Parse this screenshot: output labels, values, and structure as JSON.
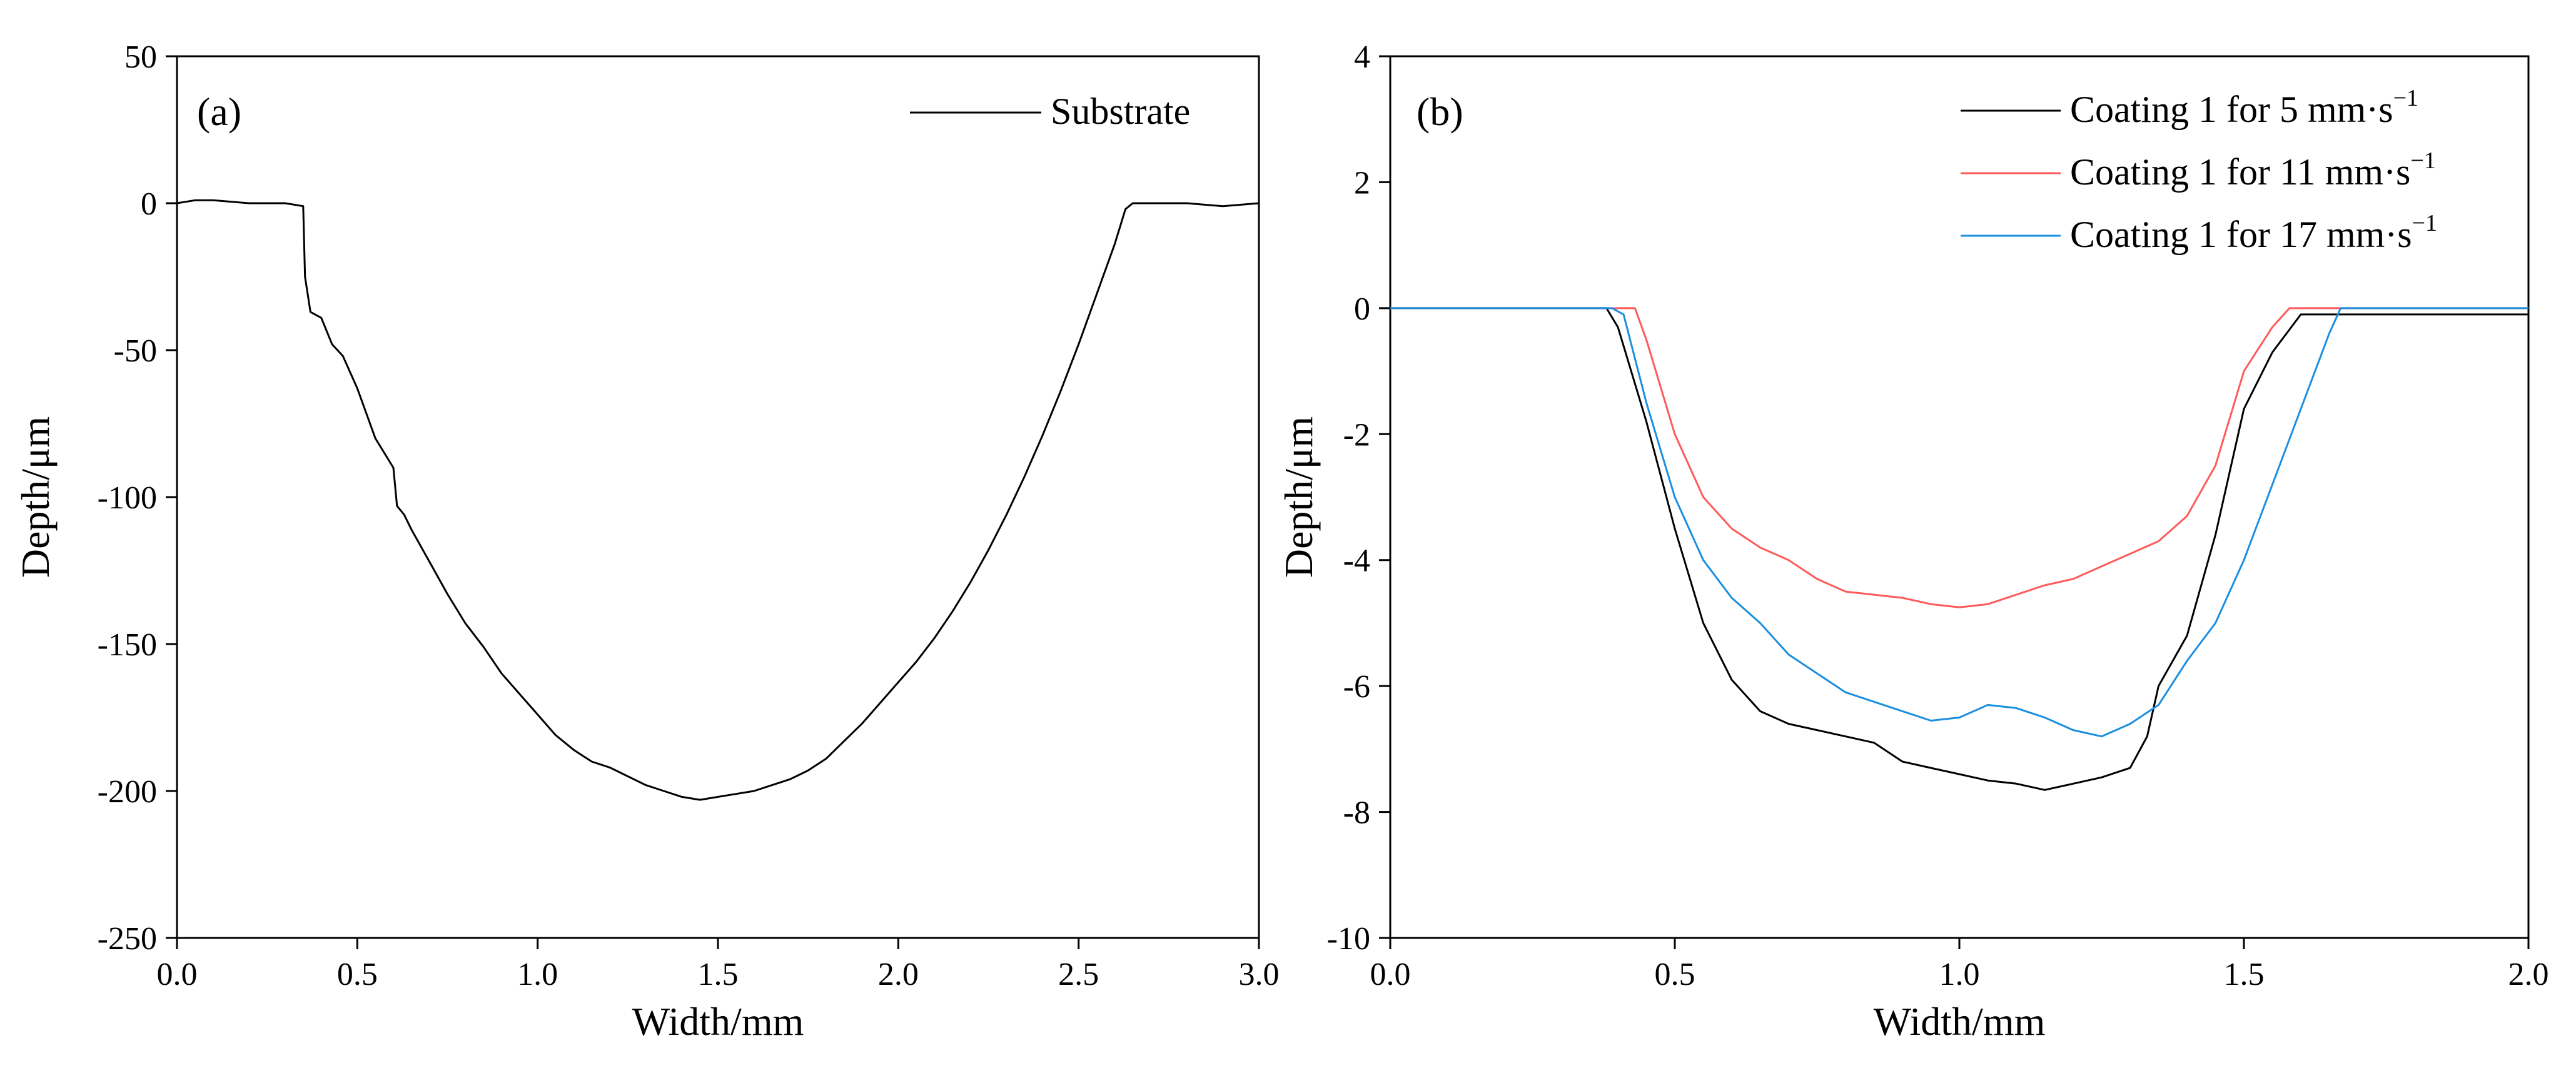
{
  "chart_data": [
    {
      "type": "line",
      "panel_label": "(a)",
      "xlabel": "Width/mm",
      "ylabel": "Depth/μm",
      "xlim": [
        0.0,
        3.0
      ],
      "ylim": [
        -250,
        50
      ],
      "xticks": [
        0.0,
        0.5,
        1.0,
        1.5,
        2.0,
        2.5,
        3.0
      ],
      "xtick_labels": [
        "0.0",
        "0.5",
        "1.0",
        "1.5",
        "2.0",
        "2.5",
        "3.0"
      ],
      "yticks": [
        50,
        0,
        -50,
        -100,
        -150,
        -200,
        -250
      ],
      "ytick_labels": [
        "50",
        "0",
        "-50",
        "-100",
        "-150",
        "-200",
        "-250"
      ],
      "legend_position": "top-right",
      "series": [
        {
          "name": "Substrate",
          "color": "#000000",
          "x": [
            0.0,
            0.05,
            0.1,
            0.2,
            0.3,
            0.35,
            0.355,
            0.37,
            0.4,
            0.43,
            0.46,
            0.5,
            0.55,
            0.6,
            0.61,
            0.63,
            0.65,
            0.7,
            0.75,
            0.8,
            0.85,
            0.9,
            0.95,
            1.0,
            1.05,
            1.1,
            1.15,
            1.2,
            1.25,
            1.3,
            1.35,
            1.4,
            1.45,
            1.5,
            1.55,
            1.6,
            1.65,
            1.7,
            1.75,
            1.8,
            1.85,
            1.9,
            1.95,
            2.0,
            2.05,
            2.1,
            2.15,
            2.2,
            2.25,
            2.3,
            2.35,
            2.4,
            2.45,
            2.5,
            2.55,
            2.6,
            2.63,
            2.65,
            2.7,
            2.8,
            2.9,
            3.0
          ],
          "y": [
            0,
            1,
            1,
            0,
            0,
            -1,
            -25,
            -37,
            -39,
            -48,
            -52,
            -63,
            -80,
            -90,
            -103,
            -106,
            -111,
            -122,
            -133,
            -143,
            -151,
            -160,
            -167,
            -174,
            -181,
            -186,
            -190,
            -192,
            -195,
            -198,
            -200,
            -202,
            -203,
            -202,
            -201,
            -200,
            -198,
            -196,
            -193,
            -189,
            -183,
            -177,
            -170,
            -163,
            -156,
            -148,
            -139,
            -129,
            -118,
            -106,
            -93,
            -79,
            -64,
            -48,
            -31,
            -14,
            -2,
            0,
            0,
            0,
            -1,
            0
          ]
        }
      ]
    },
    {
      "type": "line",
      "panel_label": "(b)",
      "xlabel": "Width/mm",
      "ylabel": "Depth/μm",
      "xlim": [
        0.0,
        2.0
      ],
      "ylim": [
        -10,
        4
      ],
      "xticks": [
        0.0,
        0.5,
        1.0,
        1.5,
        2.0
      ],
      "xtick_labels": [
        "0.0",
        "0.5",
        "1.0",
        "1.5",
        "2.0"
      ],
      "yticks": [
        4,
        2,
        0,
        -2,
        -4,
        -6,
        -8,
        -10
      ],
      "ytick_labels": [
        "4",
        "2",
        "0",
        "-2",
        "-4",
        "-6",
        "-8",
        "-10"
      ],
      "legend_position": "top-right",
      "legend_unit": "mm·s",
      "legend_superscript": "−1",
      "series": [
        {
          "name": "Coating 1 for 5 mm·s−1",
          "label_main": "Coating 1 for 5 mm·s",
          "label_sup": "−1",
          "color": "#000000",
          "x": [
            0.0,
            0.38,
            0.4,
            0.45,
            0.5,
            0.55,
            0.6,
            0.65,
            0.7,
            0.75,
            0.8,
            0.85,
            0.9,
            0.95,
            1.0,
            1.05,
            1.1,
            1.15,
            1.2,
            1.25,
            1.3,
            1.33,
            1.35,
            1.4,
            1.45,
            1.5,
            1.55,
            1.6,
            1.65,
            1.7,
            2.0
          ],
          "y": [
            0,
            0,
            -0.3,
            -1.8,
            -3.5,
            -5.0,
            -5.9,
            -6.4,
            -6.6,
            -6.7,
            -6.8,
            -6.9,
            -7.2,
            -7.3,
            -7.4,
            -7.5,
            -7.55,
            -7.65,
            -7.55,
            -7.45,
            -7.3,
            -6.8,
            -6.0,
            -5.2,
            -3.6,
            -1.6,
            -0.7,
            -0.1,
            -0.1,
            -0.1,
            -0.1
          ]
        },
        {
          "name": "Coating 1 for 11 mm·s−1",
          "label_main": "Coating 1 for 11 mm·s",
          "label_sup": "−1",
          "color": "#ff5a5a",
          "x": [
            0.0,
            0.4,
            0.43,
            0.45,
            0.5,
            0.55,
            0.6,
            0.65,
            0.7,
            0.75,
            0.8,
            0.85,
            0.9,
            0.95,
            1.0,
            1.05,
            1.1,
            1.15,
            1.2,
            1.25,
            1.3,
            1.35,
            1.4,
            1.45,
            1.5,
            1.55,
            1.58,
            1.6,
            1.65,
            2.0
          ],
          "y": [
            0,
            0,
            0,
            -0.5,
            -2.0,
            -3.0,
            -3.5,
            -3.8,
            -4.0,
            -4.3,
            -4.5,
            -4.55,
            -4.6,
            -4.7,
            -4.75,
            -4.7,
            -4.55,
            -4.4,
            -4.3,
            -4.1,
            -3.9,
            -3.7,
            -3.3,
            -2.5,
            -1.0,
            -0.3,
            0,
            0,
            0,
            0
          ]
        },
        {
          "name": "Coating 1 for 17 mm·s−1",
          "label_main": "Coating 1 for 17 mm·s",
          "label_sup": "−1",
          "color": "#1a8fe0",
          "x": [
            0.0,
            0.39,
            0.41,
            0.45,
            0.5,
            0.55,
            0.6,
            0.65,
            0.7,
            0.75,
            0.8,
            0.85,
            0.9,
            0.95,
            1.0,
            1.05,
            1.1,
            1.15,
            1.2,
            1.25,
            1.3,
            1.35,
            1.4,
            1.45,
            1.5,
            1.55,
            1.6,
            1.65,
            1.67,
            1.7,
            2.0
          ],
          "y": [
            0,
            0,
            -0.1,
            -1.5,
            -3.0,
            -4.0,
            -4.6,
            -5.0,
            -5.5,
            -5.8,
            -6.1,
            -6.25,
            -6.4,
            -6.55,
            -6.5,
            -6.3,
            -6.35,
            -6.5,
            -6.7,
            -6.8,
            -6.6,
            -6.3,
            -5.6,
            -5.0,
            -4.0,
            -2.8,
            -1.6,
            -0.4,
            0,
            0,
            0
          ]
        }
      ]
    }
  ]
}
